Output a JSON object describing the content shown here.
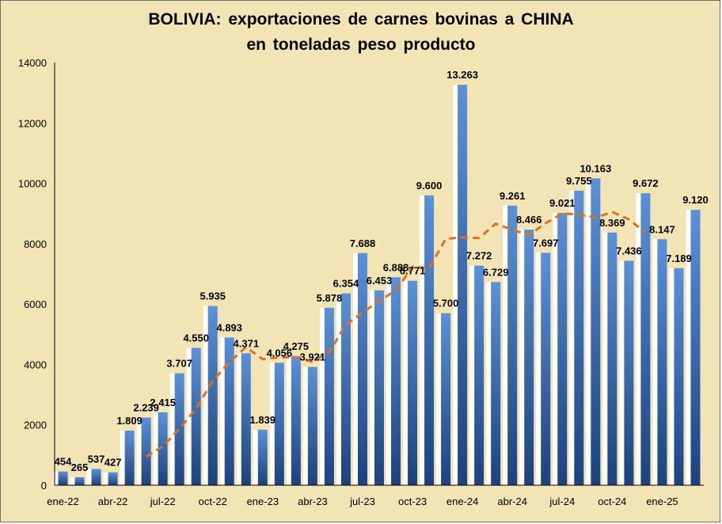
{
  "chart_data": {
    "type": "bar",
    "title": "BOLIVIA:  exportaciones  de  carnes  bovinas  a  CHINA",
    "subtitle": "en  toneladas  peso  producto",
    "xlabel": "",
    "ylabel": "",
    "ylim": [
      0,
      14000
    ],
    "yticks": [
      "0",
      "2000",
      "4000",
      "6000",
      "8000",
      "10000",
      "12000",
      "14000"
    ],
    "x_tick_labels": [
      {
        "index": 0,
        "label": "ene-22"
      },
      {
        "index": 3,
        "label": "abr-22"
      },
      {
        "index": 6,
        "label": "jul-22"
      },
      {
        "index": 9,
        "label": "oct-22"
      },
      {
        "index": 12,
        "label": "ene-23"
      },
      {
        "index": 15,
        "label": "abr-23"
      },
      {
        "index": 18,
        "label": "jul-23"
      },
      {
        "index": 21,
        "label": "oct-23"
      },
      {
        "index": 24,
        "label": "ene-24"
      },
      {
        "index": 27,
        "label": "abr-24"
      },
      {
        "index": 30,
        "label": "jul-24"
      },
      {
        "index": 33,
        "label": "oct-24"
      },
      {
        "index": 36,
        "label": "ene-25"
      }
    ],
    "values": [
      454,
      265,
      537,
      427,
      1809,
      2239,
      2415,
      3707,
      4550,
      5935,
      4893,
      4371,
      1839,
      4056,
      4275,
      3921,
      5878,
      6354,
      7688,
      6453,
      6888,
      6771,
      9600,
      5700,
      13263,
      7272,
      6729,
      9261,
      8466,
      7697,
      9021,
      9755,
      10163,
      8369,
      7436,
      9672,
      8147,
      7189,
      9120
    ],
    "labels": [
      "454",
      "265",
      "537",
      "427",
      "1.809",
      "2.239",
      "2.415",
      "3.707",
      "4.550",
      "5.935",
      "4.893",
      "4.371",
      "1.839",
      "4.056",
      "4.275",
      "3.921",
      "5.878",
      "6.354",
      "7.688",
      "6.453",
      "6.888",
      "6.771",
      "9.600",
      "5.700",
      "13.263",
      "7.272",
      "6.729",
      "9.261",
      "8.466",
      "7.697",
      "9.021",
      "9.755",
      "10.163",
      "8.369",
      "7.436",
      "9.672",
      "8.147",
      "7.189",
      "9.120"
    ],
    "trend": {
      "style": "dashed",
      "color": "#e07020",
      "start_index": 5,
      "values": [
        950,
        1288,
        1867,
        2540,
        3455,
        4079,
        4575,
        4175,
        4238,
        4237,
        4084,
        4418,
        5318,
        5718,
        6108,
        6447,
        7241,
        7191,
        8158,
        8212,
        8188,
        8660,
        8461,
        8286,
        8679,
        9001,
        8967,
        8862,
        9051,
        8807,
        8364
      ]
    },
    "colors": {
      "background": "#f2e4b4",
      "bar_top": "#5b91d8",
      "bar_bottom": "#1c427f",
      "bar_highlight": "#ffffff"
    },
    "grid": false,
    "legend": "none"
  }
}
